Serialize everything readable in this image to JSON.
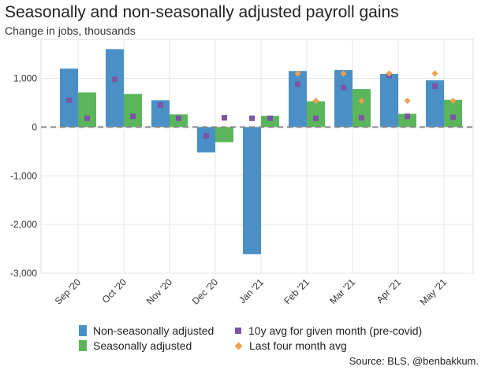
{
  "title": "Seasonally and non-seasonally adjusted payroll gains",
  "subtitle": "Change in jobs, thousands",
  "source": "Source: BLS, @benbakkum.",
  "legend": {
    "nsa": "Non-seasonally adjusted",
    "sa": "Seasonally adjusted",
    "avg10y": "10y avg for given month (pre-covid)",
    "last4": "Last four month avg"
  },
  "colors": {
    "nsa": "#4a90c7",
    "sa": "#5bb55b",
    "avg10y": "#7b55a6",
    "last4": "#f0a050",
    "zero_line": "#888888",
    "grid": "#e6e6e6"
  },
  "chart_data": {
    "type": "bar",
    "categories": [
      "Sep '20",
      "Oct '20",
      "Nov '20",
      "Dec '20",
      "Jan '21",
      "Feb '21",
      "Mar '21",
      "Apr '21",
      "May '21"
    ],
    "ylim": [
      -3000,
      1800
    ],
    "yticks": [
      1000,
      0,
      -1000,
      -2000,
      -3000
    ],
    "ytick_labels": [
      "1,000",
      "0",
      "-1,000",
      "-2,000",
      "-3,000"
    ],
    "series": [
      {
        "name": "Non-seasonally adjusted",
        "type": "bar",
        "values": [
          1200,
          1600,
          550,
          -520,
          -2610,
          1150,
          1170,
          1090,
          960
        ]
      },
      {
        "name": "Seasonally adjusted",
        "type": "bar",
        "values": [
          710,
          680,
          260,
          -310,
          230,
          530,
          780,
          270,
          560
        ]
      },
      {
        "name": "10y avg for given month (pre-covid)",
        "type": "square",
        "values": [
          550,
          980,
          450,
          -180,
          180,
          880,
          810,
          1060,
          840
        ]
      },
      {
        "name": "10y avg for given month (pre-covid)",
        "type": "square",
        "values": [
          180,
          220,
          180,
          190,
          180,
          180,
          190,
          220,
          200
        ]
      },
      {
        "name": "Last four month avg",
        "type": "diamond",
        "values": [
          null,
          null,
          null,
          null,
          null,
          1100,
          1100,
          1100,
          1100
        ]
      },
      {
        "name": "Last four month avg",
        "type": "diamond",
        "values": [
          null,
          null,
          null,
          null,
          null,
          540,
          540,
          540,
          540
        ]
      }
    ]
  }
}
